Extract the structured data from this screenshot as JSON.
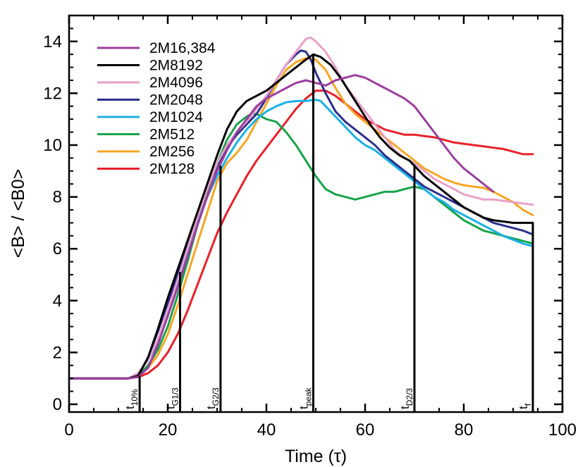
{
  "chart_data": {
    "type": "line",
    "xlabel": "Time (τ)",
    "ylabel": "<B> / <B0>",
    "xlim": [
      0,
      100
    ],
    "ylim": [
      -0.3,
      15
    ],
    "xticks": [
      "0",
      "20",
      "40",
      "60",
      "80",
      "100"
    ],
    "yticks": [
      "0",
      "2",
      "4",
      "6",
      "8",
      "10",
      "12",
      "14"
    ],
    "grid": false,
    "legend_position": "top-left",
    "series": [
      {
        "name": "2M16,384",
        "color": "#9b3e9e",
        "x": [
          0,
          12,
          14,
          16,
          18,
          20,
          22,
          24,
          26,
          28,
          30,
          32,
          34,
          36,
          38,
          40,
          42,
          44,
          46,
          48,
          50,
          52,
          54,
          56,
          58,
          60,
          62,
          64,
          66,
          68,
          70,
          72,
          74,
          76,
          78,
          80,
          82,
          84,
          86
        ],
        "y": [
          1,
          1,
          1.05,
          1.4,
          2.3,
          3.4,
          4.5,
          5.7,
          6.9,
          8.0,
          9.0,
          9.8,
          10.5,
          11.0,
          11.5,
          11.8,
          12.0,
          12.2,
          12.4,
          12.5,
          12.4,
          12.3,
          12.5,
          12.6,
          12.7,
          12.6,
          12.4,
          12.2,
          12.0,
          11.8,
          11.5,
          11.0,
          10.5,
          10.0,
          9.5,
          9.1,
          8.8,
          8.5,
          8.2
        ]
      },
      {
        "name": "2M8192",
        "color": "#000000",
        "x": [
          0,
          12,
          14,
          16,
          18,
          20,
          22,
          24,
          26,
          28,
          30,
          32,
          34,
          36,
          38,
          40,
          42,
          44,
          46,
          48,
          49.5,
          51,
          53,
          55,
          57,
          59,
          61,
          63,
          65,
          67,
          69,
          70,
          72,
          74,
          76,
          78,
          80,
          82,
          84,
          86,
          88,
          90,
          92,
          94
        ],
        "y": [
          1,
          1,
          1.1,
          1.8,
          2.9,
          4.1,
          5.2,
          6.3,
          7.4,
          8.5,
          9.6,
          10.6,
          11.3,
          11.7,
          11.9,
          12.1,
          12.4,
          12.7,
          13.0,
          13.3,
          13.5,
          13.4,
          13.1,
          12.6,
          12.0,
          11.4,
          10.8,
          10.3,
          9.9,
          9.6,
          9.4,
          9.2,
          8.8,
          8.5,
          8.2,
          7.9,
          7.6,
          7.4,
          7.2,
          7.1,
          7.05,
          7.0,
          7.0,
          7.0
        ]
      },
      {
        "name": "2M4096",
        "color": "#e8a0c8",
        "x": [
          0,
          12,
          14,
          16,
          18,
          20,
          22,
          24,
          26,
          28,
          30,
          32,
          34,
          36,
          38,
          40,
          42,
          44,
          46,
          48,
          49,
          50,
          52,
          54,
          56,
          58,
          60,
          62,
          64,
          66,
          68,
          70,
          72,
          74,
          76,
          78,
          80,
          82,
          84,
          86,
          88,
          90,
          92,
          94
        ],
        "y": [
          1,
          1,
          1.2,
          1.7,
          2.5,
          3.6,
          4.8,
          6.0,
          7.2,
          8.3,
          9.3,
          10.0,
          10.5,
          10.9,
          11.4,
          11.9,
          12.5,
          13.1,
          13.6,
          14.1,
          14.15,
          14.0,
          13.6,
          13.0,
          12.3,
          11.8,
          11.3,
          10.8,
          10.3,
          9.8,
          9.5,
          9.3,
          9.0,
          8.7,
          8.5,
          8.3,
          8.1,
          8.0,
          7.9,
          7.9,
          7.85,
          7.8,
          7.75,
          7.7
        ]
      },
      {
        "name": "2M2048",
        "color": "#2b2f8c",
        "x": [
          0,
          12,
          14,
          16,
          18,
          20,
          22,
          24,
          26,
          28,
          30,
          32,
          34,
          36,
          38,
          40,
          42,
          44,
          46,
          47,
          48,
          49,
          50,
          52,
          54,
          56,
          58,
          60,
          62,
          64,
          66,
          68,
          70,
          72,
          74,
          76,
          78,
          80,
          82,
          84,
          86,
          88,
          90,
          92,
          94
        ],
        "y": [
          1,
          1,
          1.1,
          1.8,
          2.8,
          3.9,
          5.0,
          6.1,
          7.2,
          8.3,
          9.2,
          9.9,
          10.4,
          10.8,
          11.2,
          11.8,
          12.5,
          13.1,
          13.5,
          13.65,
          13.6,
          13.3,
          12.8,
          12.0,
          11.3,
          10.9,
          10.6,
          10.3,
          10.0,
          9.6,
          9.3,
          9.0,
          8.7,
          8.4,
          8.2,
          8.0,
          7.8,
          7.6,
          7.4,
          7.2,
          7.0,
          6.9,
          6.8,
          6.7,
          6.55
        ]
      },
      {
        "name": "2M1024",
        "color": "#1ab0e6",
        "x": [
          0,
          12,
          14,
          16,
          18,
          20,
          22,
          24,
          26,
          28,
          30,
          32,
          34,
          36,
          38,
          40,
          42,
          44,
          46,
          48,
          50,
          51,
          52,
          54,
          56,
          58,
          60,
          62,
          64,
          66,
          68,
          70,
          72,
          74,
          76,
          78,
          80,
          82,
          84,
          86,
          88,
          90,
          92,
          94
        ],
        "y": [
          1,
          1,
          1.2,
          1.7,
          2.4,
          3.4,
          4.6,
          5.8,
          7.0,
          8.0,
          8.8,
          9.5,
          10.1,
          10.6,
          11.0,
          11.3,
          11.5,
          11.65,
          11.7,
          11.7,
          11.75,
          11.7,
          11.5,
          11.1,
          10.7,
          10.3,
          10.0,
          9.8,
          9.5,
          9.2,
          8.9,
          8.6,
          8.3,
          8.0,
          7.8,
          7.5,
          7.3,
          7.1,
          6.9,
          6.7,
          6.5,
          6.35,
          6.2,
          6.1
        ]
      },
      {
        "name": "2M512",
        "color": "#17a34a",
        "x": [
          0,
          12,
          14,
          16,
          18,
          20,
          22,
          24,
          26,
          28,
          30,
          32,
          34,
          36,
          37,
          38,
          40,
          42,
          44,
          46,
          48,
          50,
          52,
          54,
          56,
          58,
          60,
          62,
          64,
          66,
          68,
          70,
          72,
          74,
          76,
          78,
          80,
          82,
          84,
          86,
          88,
          90,
          92,
          94
        ],
        "y": [
          1,
          1,
          1.1,
          1.5,
          2.1,
          3.0,
          4.2,
          5.5,
          6.9,
          8.2,
          9.3,
          10.2,
          10.8,
          11.1,
          11.2,
          11.2,
          11.0,
          10.9,
          10.5,
          10.0,
          9.4,
          8.8,
          8.3,
          8.1,
          8.0,
          7.9,
          8.0,
          8.1,
          8.2,
          8.2,
          8.3,
          8.4,
          8.3,
          8.0,
          7.7,
          7.4,
          7.1,
          6.9,
          6.7,
          6.6,
          6.5,
          6.4,
          6.3,
          6.2
        ]
      },
      {
        "name": "2M256",
        "color": "#f5a623",
        "x": [
          0,
          12,
          14,
          16,
          18,
          20,
          22,
          24,
          26,
          28,
          30,
          32,
          34,
          36,
          38,
          40,
          42,
          44,
          46,
          48,
          50,
          52,
          54,
          56,
          58,
          60,
          62,
          64,
          66,
          68,
          70,
          72,
          74,
          76,
          78,
          80,
          82,
          84,
          86,
          88,
          90,
          92,
          94
        ],
        "y": [
          1,
          1,
          1.1,
          1.4,
          1.9,
          2.7,
          3.8,
          5.0,
          6.2,
          7.4,
          8.6,
          9.3,
          9.7,
          10.2,
          10.9,
          11.6,
          12.3,
          12.9,
          13.2,
          13.35,
          13.3,
          12.9,
          12.2,
          11.6,
          11.2,
          10.9,
          10.6,
          10.3,
          10.0,
          9.7,
          9.4,
          9.1,
          8.9,
          8.7,
          8.55,
          8.45,
          8.4,
          8.35,
          8.2,
          8.0,
          7.8,
          7.5,
          7.3
        ]
      },
      {
        "name": "2M128",
        "color": "#e8202a",
        "x": [
          0,
          12,
          14,
          16,
          18,
          20,
          22,
          24,
          26,
          28,
          30,
          32,
          34,
          36,
          38,
          40,
          42,
          44,
          46,
          48,
          50,
          52,
          54,
          56,
          58,
          60,
          62,
          64,
          66,
          68,
          70,
          72,
          74,
          76,
          78,
          80,
          82,
          84,
          86,
          88,
          90,
          92,
          94
        ],
        "y": [
          1,
          1,
          1.05,
          1.2,
          1.5,
          2.0,
          2.7,
          3.6,
          4.6,
          5.6,
          6.6,
          7.4,
          8.1,
          8.8,
          9.4,
          9.9,
          10.4,
          10.9,
          11.4,
          11.8,
          12.1,
          12.1,
          11.9,
          11.6,
          11.3,
          11.0,
          10.8,
          10.6,
          10.5,
          10.4,
          10.4,
          10.35,
          10.3,
          10.2,
          10.1,
          10.05,
          10.0,
          9.95,
          9.9,
          9.85,
          9.75,
          9.65,
          9.65
        ]
      }
    ],
    "markers": [
      {
        "main": "t",
        "sub": "10%",
        "x": 14.3,
        "y": 1.1
      },
      {
        "main": "t",
        "sub": "G1/3",
        "x": 22.5,
        "y": 5.1
      },
      {
        "main": "t",
        "sub": "G2/3",
        "x": 30.7,
        "y": 9.2
      },
      {
        "main": "t",
        "sub": "peak",
        "x": 49.5,
        "y": 13.5
      },
      {
        "main": "t",
        "sub": "D2/3",
        "x": 70.0,
        "y": 9.2
      },
      {
        "main": "t",
        "sub": "f",
        "x": 94.0,
        "y": 7.0
      }
    ]
  }
}
